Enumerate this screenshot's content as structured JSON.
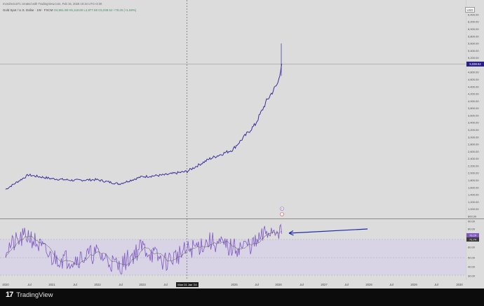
{
  "header": {
    "credit": "mondrezo371 created with TradingView.com, Feb 15, 2026 10:34 UTC+3:30",
    "symbol": "Gold Spot / U.S. Dollar · 1W · FXCM",
    "ohlc": "O4,961.98 H5,118.80 L4,877.68 C5,038.52 +78.25 (+1.58%)"
  },
  "price_axis": {
    "currency": "USD",
    "labels": [
      "6,400.00",
      "6,200.00",
      "6,000.00",
      "5,800.00",
      "5,600.00",
      "5,400.00",
      "5,200.00",
      "4,800.00",
      "4,600.00",
      "4,400.00",
      "4,200.00",
      "4,000.00",
      "3,800.00",
      "3,600.00",
      "3,400.00",
      "3,200.00",
      "3,000.00",
      "2,800.00",
      "2,600.00",
      "2,400.00",
      "2,200.00",
      "2,000.00",
      "1,800.00",
      "1,600.00",
      "1,400.00",
      "1,200.00",
      "1,000.00",
      "800.00"
    ],
    "current_price": "5,038.52"
  },
  "rsi_axis": {
    "labels": [
      "90.00",
      "80.00",
      "60.00",
      "50.00",
      "40.00",
      "30.00"
    ],
    "rsi_value": "76.29",
    "ma_value": "71.74"
  },
  "time_axis": {
    "labels": [
      "2020",
      "Jul",
      "2021",
      "Jul",
      "2022",
      "Jul",
      "2023",
      "Jul",
      "2025",
      "Jul",
      "2026",
      "Jul",
      "2027",
      "Jul",
      "2028",
      "Jul",
      "2029",
      "Jul",
      "2030"
    ],
    "crosshair_label": "Mon 01 Jan '24"
  },
  "brand": {
    "logo": "17",
    "name": "TradingView"
  },
  "colors": {
    "price_line": "#3a2f9a",
    "rsi_line": "#7e57c2",
    "rsi_band": "#d7d1e6",
    "price_badge": "#2a1f8a",
    "arrow": "#1a2aa8"
  },
  "chart_data": {
    "type": "line",
    "title": "",
    "series": [
      {
        "x": [
          "2020-01",
          "2020-07",
          "2021-01",
          "2021-07",
          "2022-01",
          "2022-07",
          "2023-01",
          "2023-07",
          "2024-01",
          "2024-07",
          "2025-01",
          "2025-07",
          "2025-10",
          "2026-01",
          "2026-02"
        ],
        "values": [
          1550,
          1950,
          1850,
          1800,
          1820,
          1700,
          1900,
          1950,
          2050,
          2400,
          2650,
          3350,
          4000,
          4500,
          5038.52
        ]
      },
      {
        "x": [
          "2020-01",
          "2020-07",
          "2021-01",
          "2021-07",
          "2022-01",
          "2022-07",
          "2023-01",
          "2023-07",
          "2024-01",
          "2024-07",
          "2025-01",
          "2025-07",
          "2025-10",
          "2026-01",
          "2026-02"
        ],
        "values": [
          60,
          75,
          50,
          48,
          55,
          40,
          62,
          45,
          58,
          68,
          60,
          65,
          78,
          82,
          76.29
        ]
      }
    ],
    "price_ylim": [
      800,
      6400
    ],
    "rsi_ylim": [
      25,
      90
    ],
    "grid": false,
    "legend": "none"
  }
}
